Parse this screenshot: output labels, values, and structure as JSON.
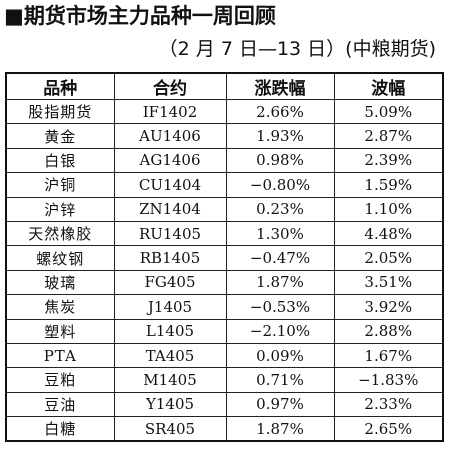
{
  "title": "■期货市场主力品种一周回顾",
  "subtitle": "（2 月 7 日—13 日）(中粮期货)",
  "table": {
    "headers": [
      "品种",
      "合约",
      "涨跌幅",
      "波幅"
    ],
    "rows": [
      [
        "股指期货",
        "IF1402",
        "2.66%",
        "5.09%"
      ],
      [
        "黄金",
        "AU1406",
        "1.93%",
        "2.87%"
      ],
      [
        "白银",
        "AG1406",
        "0.98%",
        "2.39%"
      ],
      [
        "沪铜",
        "CU1404",
        "−0.80%",
        "1.59%"
      ],
      [
        "沪锌",
        "ZN1404",
        "0.23%",
        "1.10%"
      ],
      [
        "天然橡胶",
        "RU1405",
        "1.30%",
        "4.48%"
      ],
      [
        "螺纹钢",
        "RB1405",
        "−0.47%",
        "2.05%"
      ],
      [
        "玻璃",
        "FG405",
        "1.87%",
        "3.51%"
      ],
      [
        "焦炭",
        "J1405",
        "−0.53%",
        "3.92%"
      ],
      [
        "塑料",
        "L1405",
        "−2.10%",
        "2.88%"
      ],
      [
        "PTA",
        "TA405",
        "0.09%",
        "1.67%"
      ],
      [
        "豆粕",
        "M1405",
        "0.71%",
        "−1.83%"
      ],
      [
        "豆油",
        "Y1405",
        "0.97%",
        "2.33%"
      ],
      [
        "白糖",
        "SR405",
        "1.87%",
        "2.65%"
      ]
    ]
  }
}
